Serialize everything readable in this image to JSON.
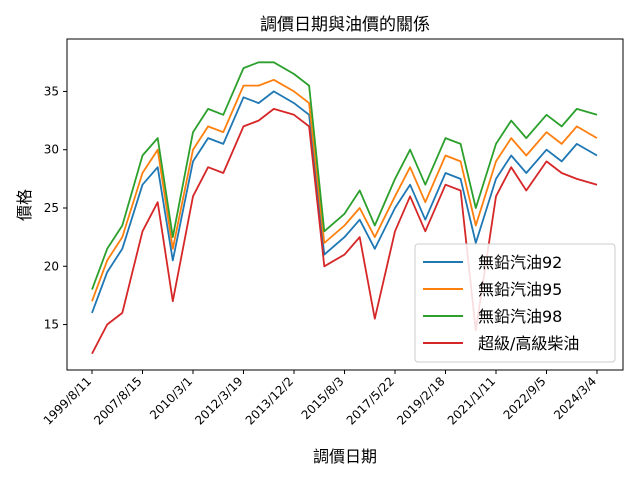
{
  "chart_data": {
    "type": "line",
    "title": "調價日期與油價的關係",
    "xlabel": "調價日期",
    "ylabel": "價格",
    "ylim": [
      11.1,
      39.5
    ],
    "yticks": [
      15,
      20,
      25,
      30,
      35
    ],
    "xticks": [
      "1999/8/11",
      "2007/8/15",
      "2010/3/1",
      "2012/3/19",
      "2013/12/2",
      "2015/8/3",
      "2017/5/22",
      "2019/2/18",
      "2021/1/11",
      "2022/9/5",
      "2024/3/4"
    ],
    "legend_position": "lower-right",
    "grid": false,
    "series": [
      {
        "name": "無鉛汽油92",
        "color": "#1f77b4",
        "x": [
          0,
          0.3,
          0.6,
          1,
          1.3,
          1.6,
          2,
          2.3,
          2.6,
          3,
          3.3,
          3.6,
          4,
          4.3,
          4.6,
          5,
          5.3,
          5.6,
          6,
          6.3,
          6.6,
          7,
          7.3,
          7.6,
          8,
          8.3,
          8.6,
          9,
          9.3,
          9.6,
          10
        ],
        "values": [
          16.0,
          19.5,
          21.5,
          27.0,
          28.5,
          20.5,
          29.0,
          31.0,
          30.5,
          34.5,
          34.0,
          35.0,
          34.0,
          33.0,
          21.0,
          22.5,
          24.0,
          21.5,
          25.0,
          27.0,
          24.0,
          28.0,
          27.5,
          22.0,
          27.5,
          29.5,
          28.0,
          30.0,
          29.0,
          30.5,
          29.5
        ]
      },
      {
        "name": "無鉛汽油95",
        "color": "#ff7f0e",
        "x": [
          0,
          0.3,
          0.6,
          1,
          1.3,
          1.6,
          2,
          2.3,
          2.6,
          3,
          3.3,
          3.6,
          4,
          4.3,
          4.6,
          5,
          5.3,
          5.6,
          6,
          6.3,
          6.6,
          7,
          7.3,
          7.6,
          8,
          8.3,
          8.6,
          9,
          9.3,
          9.6,
          10
        ],
        "values": [
          17.0,
          20.5,
          22.5,
          28.0,
          30.0,
          21.5,
          30.0,
          32.0,
          31.5,
          35.5,
          35.5,
          36.0,
          35.0,
          34.0,
          22.0,
          23.5,
          25.0,
          22.5,
          26.0,
          28.5,
          25.5,
          29.5,
          29.0,
          23.5,
          29.0,
          31.0,
          29.5,
          31.5,
          30.5,
          32.0,
          31.0
        ]
      },
      {
        "name": "無鉛汽油98",
        "color": "#2ca02c",
        "x": [
          0,
          0.3,
          0.6,
          1,
          1.3,
          1.6,
          2,
          2.3,
          2.6,
          3,
          3.3,
          3.6,
          4,
          4.3,
          4.6,
          5,
          5.3,
          5.6,
          6,
          6.3,
          6.6,
          7,
          7.3,
          7.6,
          8,
          8.3,
          8.6,
          9,
          9.3,
          9.6,
          10
        ],
        "values": [
          18.0,
          21.5,
          23.5,
          29.5,
          31.0,
          22.5,
          31.5,
          33.5,
          33.0,
          37.0,
          37.5,
          37.5,
          36.5,
          35.5,
          23.0,
          24.5,
          26.5,
          23.5,
          27.5,
          30.0,
          27.0,
          31.0,
          30.5,
          25.0,
          30.5,
          32.5,
          31.0,
          33.0,
          32.0,
          33.5,
          33.0
        ]
      },
      {
        "name": "超級/高級柴油",
        "color": "#d62728",
        "x": [
          0,
          0.3,
          0.6,
          1,
          1.3,
          1.6,
          2,
          2.3,
          2.6,
          3,
          3.3,
          3.6,
          4,
          4.3,
          4.6,
          5,
          5.3,
          5.6,
          6,
          6.3,
          6.6,
          7,
          7.3,
          7.6,
          8,
          8.3,
          8.6,
          9,
          9.3,
          9.6,
          10
        ],
        "values": [
          12.5,
          15.0,
          16.0,
          23.0,
          25.5,
          17.0,
          26.0,
          28.5,
          28.0,
          32.0,
          32.5,
          33.5,
          33.0,
          32.0,
          20.0,
          21.0,
          22.5,
          15.5,
          23.0,
          26.0,
          23.0,
          27.0,
          26.5,
          14.5,
          26.0,
          28.5,
          26.5,
          29.0,
          28.0,
          27.5,
          27.0
        ]
      }
    ]
  }
}
